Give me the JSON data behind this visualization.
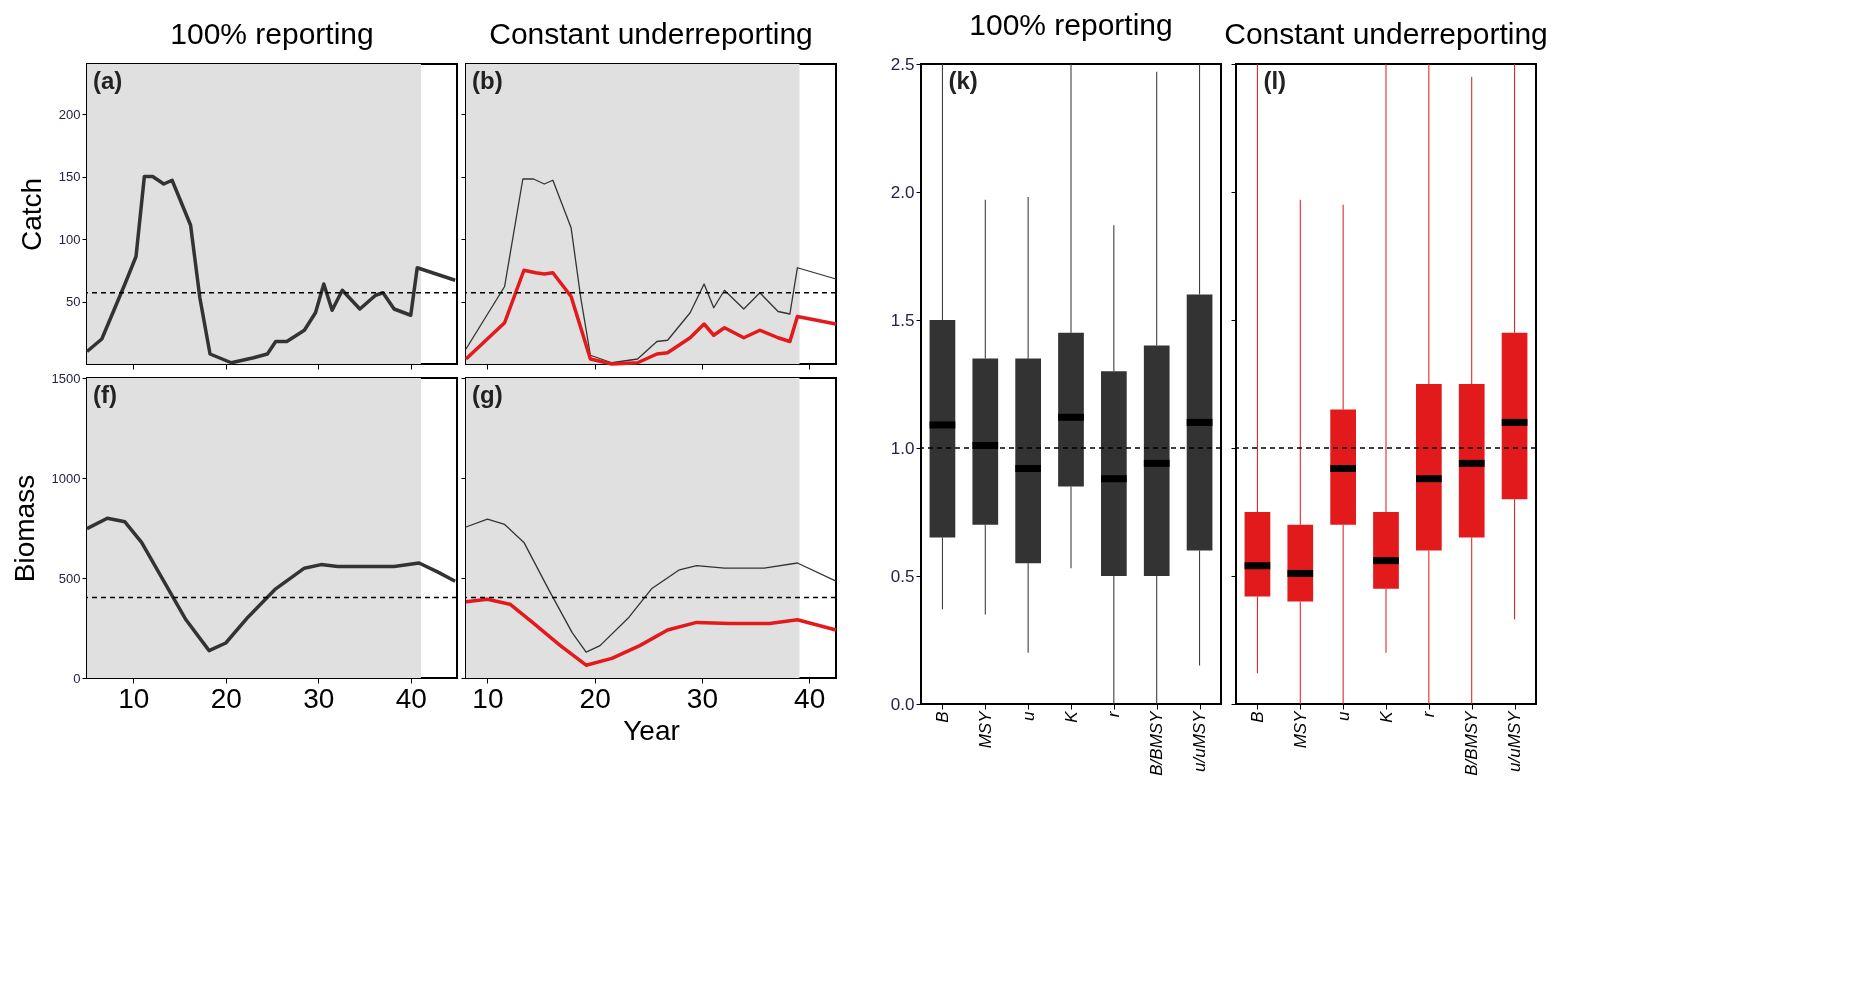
{
  "chart_data": [
    {
      "type": "line",
      "title": "100% reporting",
      "ylabel": "Catch",
      "annotations": [
        "(a)"
      ],
      "xlim": [
        5,
        45
      ],
      "ylim": [
        0,
        240
      ],
      "xticks": [
        10,
        20,
        30,
        40
      ],
      "yticks": [
        50,
        100,
        150,
        200
      ],
      "tick_labels": "y",
      "bands": [
        {
          "axis": "x",
          "from": 5,
          "to": 41.1,
          "color": "#e0e0e0"
        }
      ],
      "ref_lines": [
        {
          "axis": "y",
          "value": 57,
          "line_style": "dashed"
        }
      ],
      "series": [
        {
          "color": "#333333",
          "x": [
            5,
            6.6,
            9.1,
            10.3,
            11.2,
            12.1,
            13.3,
            14.2,
            16.2,
            17.2,
            18.3,
            20.6,
            23,
            24.5,
            25.4,
            26.6,
            28.5,
            29.7,
            30.6,
            31.5,
            32.6,
            34.5,
            36.2,
            37,
            38.2,
            40,
            40.7,
            44.8
          ],
          "values": [
            10,
            20,
            64,
            86,
            150,
            150,
            144,
            147,
            111,
            53,
            8,
            1,
            5,
            8,
            18,
            18,
            27,
            41,
            64,
            43,
            59,
            44,
            55,
            57,
            44,
            39,
            77,
            67
          ]
        }
      ]
    },
    {
      "type": "line",
      "title": "Constant underreporting",
      "annotations": [
        "(b)"
      ],
      "xlim": [
        8,
        42.5
      ],
      "ylim": [
        0,
        240
      ],
      "xticks": [
        10,
        20,
        30,
        40
      ],
      "yticks": [
        50,
        100,
        150,
        200
      ],
      "tick_labels": false,
      "bands": [
        {
          "axis": "x",
          "from": 8,
          "to": 39.1,
          "color": "#e0e0e0"
        }
      ],
      "ref_lines": [
        {
          "axis": "y",
          "value": 57,
          "line_style": "dashed"
        }
      ],
      "series": [
        {
          "color": "#333333",
          "x": [
            8,
            11.6,
            13.3,
            14.3,
            15.3,
            16.1,
            17.8,
            18.7,
            19.6,
            21.6,
            24,
            25.8,
            26.8,
            28.9,
            30.2,
            31.1,
            32.1,
            33.9,
            35.4,
            37.1,
            38.2,
            38.9,
            42.5
          ],
          "values": [
            12,
            62,
            148,
            148,
            144,
            147,
            109,
            53,
            7,
            1,
            4,
            18,
            19,
            41,
            64,
            45,
            59,
            44,
            57,
            42,
            40,
            77,
            68
          ]
        },
        {
          "color": "#e31a1c",
          "x": [
            8,
            11.6,
            13.4,
            14.5,
            15.3,
            16.1,
            17.8,
            18.7,
            19.6,
            21.6,
            24,
            25.8,
            26.8,
            28.9,
            30.2,
            31.1,
            32.1,
            33.9,
            35.4,
            37.1,
            38.2,
            38.9,
            42.5
          ],
          "values": [
            4,
            33,
            75,
            73,
            72,
            73,
            54,
            29,
            4,
            0,
            1,
            8,
            9,
            21,
            32,
            23,
            29,
            21,
            27,
            21,
            18,
            38,
            32
          ]
        }
      ]
    },
    {
      "type": "line",
      "ylabel": "Biomass",
      "annotations": [
        "(f)"
      ],
      "xlim": [
        5,
        45
      ],
      "ylim": [
        0,
        1500
      ],
      "xticks": [
        10,
        20,
        30,
        40
      ],
      "yticks": [
        0,
        500,
        1000,
        1500
      ],
      "bands": [
        {
          "axis": "x",
          "from": 5,
          "to": 41.1,
          "color": "#e0e0e0"
        }
      ],
      "ref_lines": [
        {
          "axis": "y",
          "value": 402,
          "line_style": "dashed"
        }
      ],
      "series": [
        {
          "color": "#333333",
          "x": [
            5,
            7.2,
            9.1,
            10.9,
            13.3,
            15.7,
            18.2,
            20,
            22.4,
            25.4,
            28.5,
            30.3,
            32.1,
            34.5,
            38.2,
            40.9,
            43,
            44.8
          ],
          "values": [
            747,
            799,
            781,
            678,
            484,
            291,
            137,
            175,
            304,
            446,
            549,
            567,
            557,
            557,
            557,
            575,
            528,
            484
          ]
        }
      ]
    },
    {
      "type": "line",
      "xlabel": "Year",
      "annotations": [
        "(g)"
      ],
      "xlim": [
        8,
        42.5
      ],
      "ylim": [
        0,
        1500
      ],
      "xticks": [
        10,
        20,
        30,
        40
      ],
      "yticks": [
        0,
        500,
        1000,
        1500
      ],
      "tick_labels": "x",
      "bands": [
        {
          "axis": "x",
          "from": 8,
          "to": 39.1,
          "color": "#e0e0e0"
        }
      ],
      "ref_lines": [
        {
          "axis": "y",
          "value": 402,
          "line_style": "dashed"
        }
      ],
      "series": [
        {
          "color": "#333333",
          "x": [
            8,
            10,
            11.6,
            13.4,
            15.8,
            17.9,
            19.2,
            20.5,
            23.2,
            25.3,
            27.9,
            29.5,
            32.1,
            35.8,
            38.9,
            42.5
          ],
          "values": [
            755,
            794,
            768,
            678,
            433,
            227,
            129,
            162,
            304,
            446,
            541,
            562,
            549,
            549,
            575,
            484
          ]
        },
        {
          "color": "#e31a1c",
          "x": [
            8,
            10,
            12.1,
            14.2,
            16.8,
            19.2,
            21.6,
            24.2,
            26.8,
            29.5,
            32.6,
            36.3,
            38.9,
            42.5
          ],
          "values": [
            381,
            394,
            369,
            278,
            162,
            64,
            98,
            162,
            240,
            278,
            273,
            273,
            291,
            240
          ]
        }
      ]
    },
    {
      "type": "box",
      "title": "100% reporting",
      "annotations": [
        "(k)"
      ],
      "categories": [
        "B",
        "MSY",
        "u",
        "K",
        "r",
        "B/BMSY",
        "u/uMSY"
      ],
      "ylim": [
        0,
        2.5
      ],
      "yticks": [
        {
          "value": 0,
          "label": "0.0"
        },
        {
          "value": 0.5,
          "label": "0.5"
        },
        {
          "value": 1,
          "label": "1.0"
        },
        {
          "value": 1.5,
          "label": "1.5"
        },
        {
          "value": 2,
          "label": "2.0"
        },
        {
          "value": 2.5,
          "label": "2.5"
        }
      ],
      "ref_lines": [
        {
          "axis": "y",
          "value": 1,
          "line_style": "dashed"
        }
      ],
      "series": [
        {
          "color": "#333333",
          "boxes": [
            {
              "low": 0.37,
              "q1": 0.65,
              "median": 1.09,
              "q3": 1.5,
              "high": 2.5
            },
            {
              "low": 0.35,
              "q1": 0.7,
              "median": 1.01,
              "q3": 1.35,
              "high": 1.97
            },
            {
              "low": 0.2,
              "q1": 0.55,
              "median": 0.92,
              "q3": 1.35,
              "high": 1.98
            },
            {
              "low": 0.53,
              "q1": 0.85,
              "median": 1.12,
              "q3": 1.45,
              "high": 2.5
            },
            {
              "low": 0,
              "q1": 0.5,
              "median": 0.88,
              "q3": 1.3,
              "high": 1.87
            },
            {
              "low": 0,
              "q1": 0.5,
              "median": 0.94,
              "q3": 1.4,
              "high": 2.47
            },
            {
              "low": 0.15,
              "q1": 0.6,
              "median": 1.1,
              "q3": 1.6,
              "high": 2.5
            }
          ]
        }
      ]
    },
    {
      "type": "box",
      "title": "Constant underreporting",
      "annotations": [
        "(l)"
      ],
      "categories": [
        "B",
        "MSY",
        "u",
        "K",
        "r",
        "B/BMSY",
        "u/uMSY"
      ],
      "ylim": [
        0,
        2.5
      ],
      "tick_labels": "x",
      "yticks": [
        0,
        0.5,
        1,
        1.5,
        2,
        2.5
      ],
      "ref_lines": [
        {
          "axis": "y",
          "value": 1,
          "line_style": "dashed"
        }
      ],
      "series": [
        {
          "color": "#e31a1c",
          "boxes": [
            {
              "low": 0.12,
              "q1": 0.42,
              "median": 0.54,
              "q3": 0.75,
              "high": 2.5
            },
            {
              "low": 0,
              "q1": 0.4,
              "median": 0.51,
              "q3": 0.7,
              "high": 1.97
            },
            {
              "low": 0,
              "q1": 0.7,
              "median": 0.92,
              "q3": 1.15,
              "high": 1.95
            },
            {
              "low": 0.2,
              "q1": 0.45,
              "median": 0.56,
              "q3": 0.75,
              "high": 2.5
            },
            {
              "low": 0,
              "q1": 0.6,
              "median": 0.88,
              "q3": 1.25,
              "high": 2.5
            },
            {
              "low": 0,
              "q1": 0.65,
              "median": 0.94,
              "q3": 1.25,
              "high": 2.45
            },
            {
              "low": 0.33,
              "q1": 0.8,
              "median": 1.1,
              "q3": 1.45,
              "high": 2.5
            }
          ]
        }
      ]
    }
  ]
}
